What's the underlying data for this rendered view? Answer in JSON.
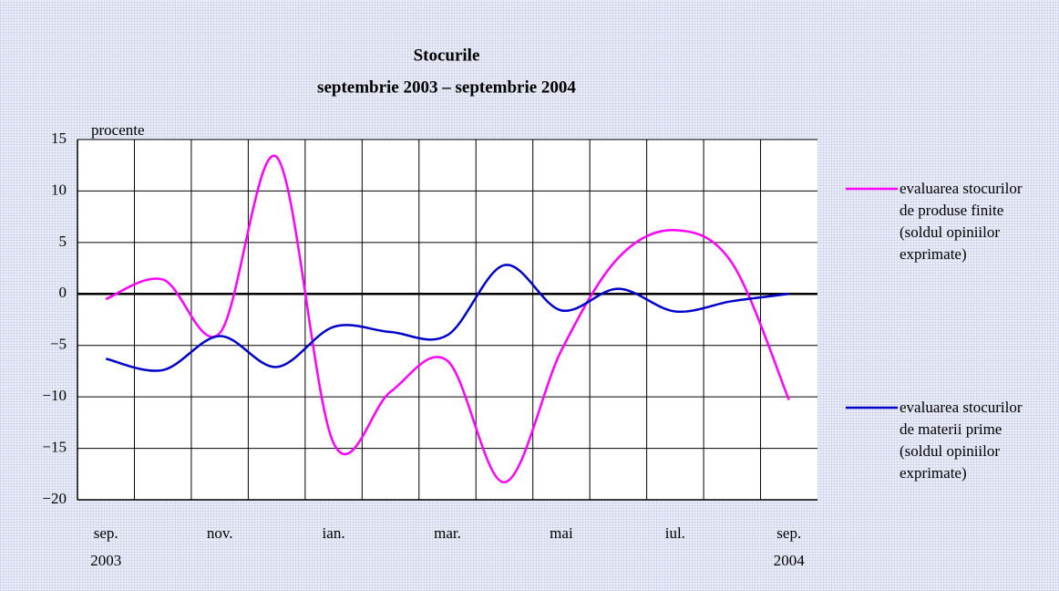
{
  "chart_data": {
    "type": "line",
    "title": "Stocurile",
    "subtitle": "septembrie 2003 – septembrie 2004",
    "y_label": "procente",
    "categories": [
      "sep. 2003",
      null,
      "nov.",
      null,
      "ian.",
      null,
      "mar.",
      null,
      "mai",
      null,
      "iul.",
      null,
      "sep. 2004"
    ],
    "series": [
      {
        "name": "evaluarea stocurilor de produse finite (soldul opiniilor exprimate)",
        "color": "#ff00ff",
        "values": [
          -0.5,
          1.4,
          -3.8,
          13.3,
          -14.5,
          -9.5,
          -6.5,
          -18.3,
          -5.5,
          3.5,
          6.2,
          3,
          -10.3
        ]
      },
      {
        "name": "evaluarea stocurilor de materii prime (soldul opiniilor exprimate)",
        "color": "#0000cc",
        "values": [
          -6.3,
          -7.4,
          -4.1,
          -7.1,
          -3.2,
          -3.7,
          -4,
          2.8,
          -1.6,
          0.5,
          -1.7,
          -0.7,
          0
        ]
      }
    ],
    "ylim": [
      -20,
      15
    ],
    "yticks": [
      15,
      10,
      5,
      0,
      {
        "value": -5,
        "label": "−5"
      },
      {
        "value": -10,
        "label": "−10"
      },
      {
        "value": -15,
        "label": "−15"
      },
      {
        "value": -20,
        "label": "−20"
      }
    ],
    "grid": true,
    "smooth": true,
    "legend": "right"
  }
}
